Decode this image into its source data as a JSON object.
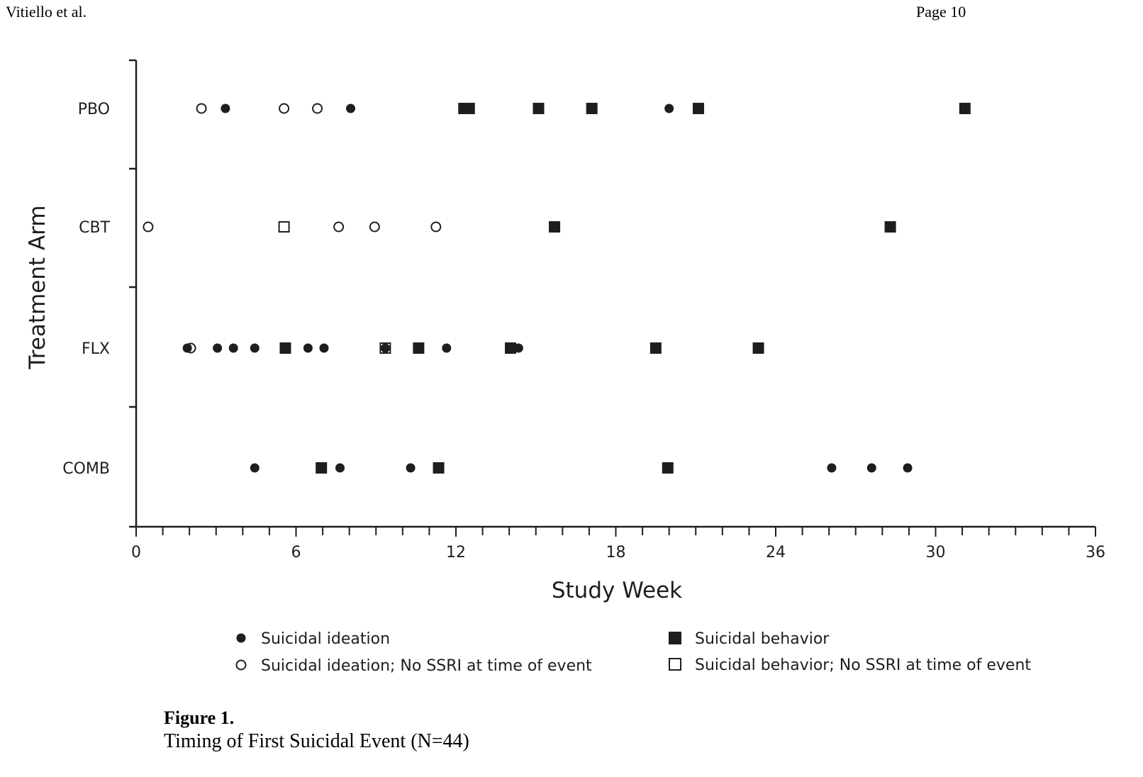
{
  "header": {
    "left": "Vitiello et al.",
    "right": "Page 10"
  },
  "caption": {
    "title": "Figure 1.",
    "text": "Timing of First Suicidal Event (N=44)"
  },
  "chart_data": {
    "type": "scatter",
    "title": "Timing of First Suicidal Event (N=44)",
    "xlabel": "Study Week",
    "ylabel": "Treatment Arm",
    "xlim": [
      0,
      36
    ],
    "x_ticks": [
      0,
      6,
      12,
      18,
      24,
      30,
      36
    ],
    "x_minor_tick_step": 1,
    "grid": false,
    "categories": [
      "PBO",
      "CBT",
      "FLX",
      "COMB"
    ],
    "legend": {
      "placement": "bottom",
      "entries": [
        {
          "key": "ideation",
          "label": "Suicidal ideation",
          "marker": "filled-circle"
        },
        {
          "key": "ideation_nossri",
          "label": "Suicidal ideation; No SSRI at time of event",
          "marker": "open-circle"
        },
        {
          "key": "behavior",
          "label": "Suicidal behavior",
          "marker": "filled-square"
        },
        {
          "key": "behavior_nossri",
          "label": "Suicidal behavior; No SSRI at time of event",
          "marker": "open-square"
        }
      ]
    },
    "series": [
      {
        "name": "PBO",
        "points": [
          {
            "week": 2.45,
            "type": "ideation_nossri"
          },
          {
            "week": 3.35,
            "type": "ideation"
          },
          {
            "week": 5.55,
            "type": "ideation_nossri"
          },
          {
            "week": 6.8,
            "type": "ideation_nossri"
          },
          {
            "week": 8.05,
            "type": "ideation"
          },
          {
            "week": 12.3,
            "type": "behavior"
          },
          {
            "week": 12.5,
            "type": "behavior"
          },
          {
            "week": 15.1,
            "type": "behavior"
          },
          {
            "week": 17.1,
            "type": "behavior"
          },
          {
            "week": 20.0,
            "type": "ideation"
          },
          {
            "week": 21.1,
            "type": "behavior"
          },
          {
            "week": 31.1,
            "type": "behavior"
          }
        ]
      },
      {
        "name": "CBT",
        "points": [
          {
            "week": 0.45,
            "type": "ideation_nossri"
          },
          {
            "week": 5.55,
            "type": "behavior_nossri"
          },
          {
            "week": 7.6,
            "type": "ideation_nossri"
          },
          {
            "week": 8.95,
            "type": "ideation_nossri"
          },
          {
            "week": 11.25,
            "type": "ideation_nossri"
          },
          {
            "week": 15.7,
            "type": "behavior"
          },
          {
            "week": 28.3,
            "type": "behavior"
          }
        ]
      },
      {
        "name": "FLX",
        "points": [
          {
            "week": 2.05,
            "type": "ideation_nossri"
          },
          {
            "week": 1.92,
            "type": "ideation"
          },
          {
            "week": 3.05,
            "type": "ideation"
          },
          {
            "week": 3.65,
            "type": "ideation"
          },
          {
            "week": 4.45,
            "type": "ideation"
          },
          {
            "week": 5.6,
            "type": "behavior"
          },
          {
            "week": 6.45,
            "type": "ideation"
          },
          {
            "week": 7.05,
            "type": "ideation"
          },
          {
            "week": 9.35,
            "type": "behavior_nossri"
          },
          {
            "week": 9.35,
            "type": "ideation"
          },
          {
            "week": 10.6,
            "type": "behavior"
          },
          {
            "week": 11.65,
            "type": "ideation"
          },
          {
            "week": 14.05,
            "type": "behavior"
          },
          {
            "week": 14.35,
            "type": "ideation"
          },
          {
            "week": 19.5,
            "type": "behavior"
          },
          {
            "week": 23.35,
            "type": "behavior"
          }
        ]
      },
      {
        "name": "COMB",
        "points": [
          {
            "week": 4.45,
            "type": "ideation"
          },
          {
            "week": 6.95,
            "type": "behavior"
          },
          {
            "week": 7.65,
            "type": "ideation"
          },
          {
            "week": 10.3,
            "type": "ideation"
          },
          {
            "week": 11.35,
            "type": "behavior"
          },
          {
            "week": 19.95,
            "type": "behavior"
          },
          {
            "week": 26.1,
            "type": "ideation"
          },
          {
            "week": 27.6,
            "type": "ideation"
          },
          {
            "week": 28.95,
            "type": "ideation"
          }
        ]
      }
    ]
  }
}
